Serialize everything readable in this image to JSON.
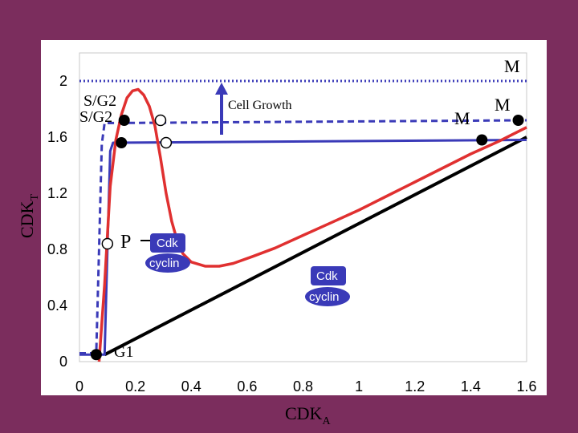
{
  "chart_data": {
    "type": "line",
    "xlabel_main": "CDK",
    "xlabel_sub": "A",
    "ylabel_main": "CDK",
    "ylabel_sub": "T",
    "xlim": [
      0,
      1.6
    ],
    "ylim": [
      0,
      2.1
    ],
    "xticks": [
      0,
      0.2,
      0.4,
      0.6,
      0.8,
      1,
      1.2,
      1.4,
      1.6
    ],
    "xtick_labels": [
      "0",
      "0.2",
      "0.4",
      "0.6",
      "0.8",
      "1",
      "1.2",
      "1.4",
      "1.6"
    ],
    "yticks": [
      0,
      0.4,
      0.8,
      1.2,
      1.6,
      2
    ],
    "ytick_labels": [
      "0",
      "0.4",
      "0.8",
      "1.2",
      "1.6",
      "2"
    ],
    "grid": false,
    "series": [
      {
        "style": "solid",
        "color": "#000000",
        "x": [
          0.09,
          1.6
        ],
        "y": [
          0.05,
          1.6
        ]
      },
      {
        "style": "solid",
        "color": "#3a3ab8",
        "x": [
          0.0,
          0.09,
          0.1,
          0.11,
          0.12,
          1.6
        ],
        "y": [
          0.05,
          0.05,
          0.8,
          1.5,
          1.56,
          1.58
        ]
      },
      {
        "style": "dashed",
        "color": "#3a3ab8",
        "x": [
          0.0,
          0.06,
          0.07,
          0.08,
          0.09,
          1.6
        ],
        "y": [
          0.06,
          0.06,
          0.8,
          1.55,
          1.7,
          1.72
        ]
      },
      {
        "style": "dotted",
        "color": "#3a3ab8",
        "x": [
          0.0,
          1.6
        ],
        "y": [
          2.0,
          2.0
        ]
      },
      {
        "style": "solid",
        "color": "#e03030",
        "x": [
          0.07,
          0.09,
          0.11,
          0.13,
          0.15,
          0.17,
          0.19,
          0.21,
          0.23,
          0.25,
          0.27,
          0.29,
          0.31,
          0.33,
          0.35,
          0.37,
          0.4,
          0.45,
          0.5,
          0.55,
          0.62,
          0.7,
          0.8,
          0.9,
          1.0,
          1.1,
          1.2,
          1.3,
          1.4,
          1.5,
          1.6
        ],
        "y": [
          0.0,
          0.55,
          1.25,
          1.58,
          1.76,
          1.88,
          1.93,
          1.94,
          1.9,
          1.82,
          1.68,
          1.45,
          1.2,
          1.0,
          0.86,
          0.77,
          0.71,
          0.68,
          0.68,
          0.7,
          0.75,
          0.81,
          0.9,
          0.99,
          1.08,
          1.18,
          1.28,
          1.38,
          1.48,
          1.57,
          1.67
        ]
      }
    ],
    "markers": {
      "filled": [
        [
          0.06,
          0.05
        ],
        [
          0.15,
          1.56
        ],
        [
          0.16,
          1.72
        ],
        [
          1.44,
          1.58
        ],
        [
          1.57,
          1.72
        ]
      ],
      "open": [
        [
          0.1,
          0.84
        ],
        [
          0.29,
          1.72
        ],
        [
          0.31,
          1.56
        ]
      ]
    },
    "annotations": {
      "m_top": "M",
      "m_mid": "M",
      "m_right": "M",
      "sg2_a": "S/G2",
      "sg2_b": "S/G2",
      "cell_growth": "Cell Growth",
      "p_label": "P",
      "g1": "G1",
      "cdk_1": "Cdk",
      "cyclin_1": "cyclin",
      "cdk_2": "Cdk",
      "cyclin_2": "cyclin"
    }
  }
}
